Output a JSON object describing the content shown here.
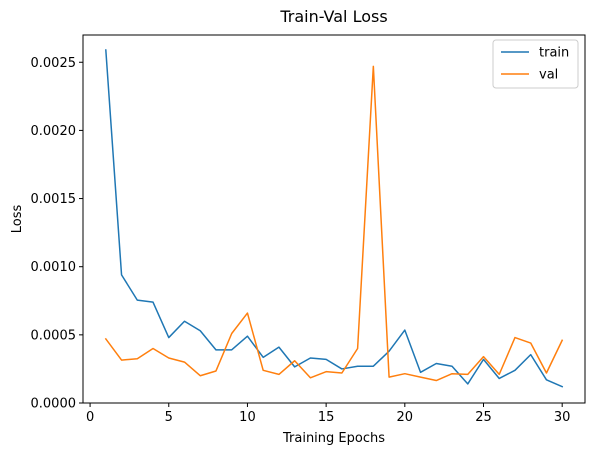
{
  "chart_data": {
    "type": "line",
    "title": "Train-Val Loss",
    "xlabel": "Training Epochs",
    "ylabel": "Loss",
    "xlim": [
      -0.45,
      31.45
    ],
    "ylim": [
      0.0,
      0.0027
    ],
    "xticks": [
      0,
      5,
      10,
      15,
      20,
      25,
      30
    ],
    "xtick_labels": [
      "0",
      "5",
      "10",
      "15",
      "20",
      "25",
      "30"
    ],
    "yticks": [
      0.0,
      0.0005,
      0.001,
      0.0015,
      0.002,
      0.0025
    ],
    "ytick_labels": [
      "0.0000",
      "0.0005",
      "0.0010",
      "0.0015",
      "0.0020",
      "0.0025"
    ],
    "grid": false,
    "legend_position": "top-right",
    "x": [
      1,
      2,
      3,
      4,
      5,
      6,
      7,
      8,
      9,
      10,
      11,
      12,
      13,
      14,
      15,
      16,
      17,
      18,
      19,
      20,
      21,
      22,
      23,
      24,
      25,
      26,
      27,
      28,
      29,
      30
    ],
    "series": [
      {
        "name": "train",
        "color": "#1f77b4",
        "values": [
          0.00259,
          0.00094,
          0.000755,
          0.00074,
          0.00048,
          0.0006,
          0.00053,
          0.00039,
          0.00039,
          0.00049,
          0.000335,
          0.00041,
          0.000265,
          0.00033,
          0.00032,
          0.00025,
          0.00027,
          0.00027,
          0.00038,
          0.000535,
          0.000225,
          0.00029,
          0.00027,
          0.00014,
          0.00032,
          0.00018,
          0.00024,
          0.000355,
          0.00017,
          0.00012
        ]
      },
      {
        "name": "val",
        "color": "#ff7f0e",
        "values": [
          0.00047,
          0.000315,
          0.000325,
          0.0004,
          0.00033,
          0.0003,
          0.0002,
          0.000235,
          0.00051,
          0.00066,
          0.00024,
          0.00021,
          0.00031,
          0.000185,
          0.00023,
          0.00022,
          0.0004,
          0.00247,
          0.00019,
          0.000215,
          0.00019,
          0.000165,
          0.000215,
          0.00021,
          0.00034,
          0.00021,
          0.00048,
          0.00044,
          0.00022,
          0.00046
        ]
      }
    ]
  }
}
